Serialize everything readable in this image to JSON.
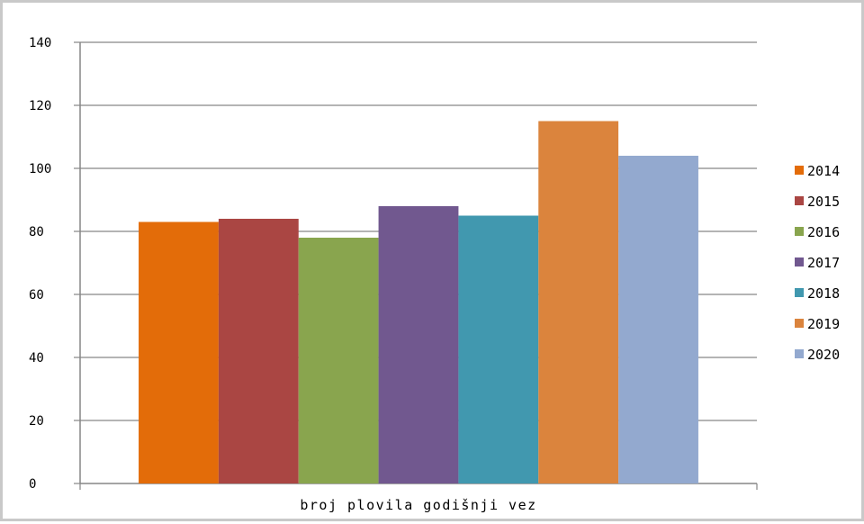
{
  "chart_data": {
    "type": "bar",
    "title": "",
    "xlabel": "",
    "ylabel": "",
    "categories": [
      "broj plovila godišnji vez"
    ],
    "series": [
      {
        "name": "2014",
        "values": [
          83
        ],
        "color": "#e36c09"
      },
      {
        "name": "2015",
        "values": [
          84
        ],
        "color": "#aa4643"
      },
      {
        "name": "2016",
        "values": [
          78
        ],
        "color": "#89a54e"
      },
      {
        "name": "2017",
        "values": [
          88
        ],
        "color": "#71588f"
      },
      {
        "name": "2018",
        "values": [
          85
        ],
        "color": "#4198af"
      },
      {
        "name": "2019",
        "values": [
          115
        ],
        "color": "#db843d"
      },
      {
        "name": "2020",
        "values": [
          104
        ],
        "color": "#93a9cf"
      }
    ],
    "ylim": [
      0,
      140
    ],
    "yticks": [
      "0",
      "20",
      "40",
      "60",
      "80",
      "100",
      "120",
      "140"
    ],
    "grid": true,
    "legend_position": "right"
  }
}
